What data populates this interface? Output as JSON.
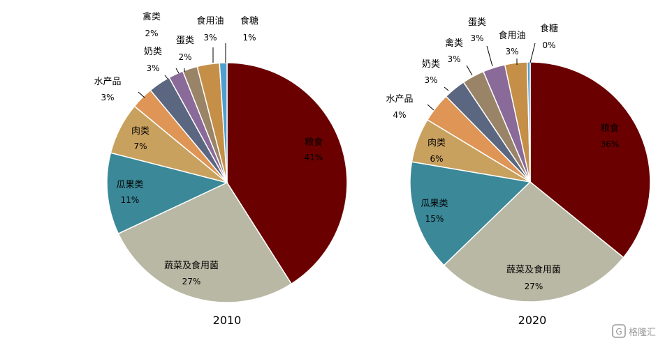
{
  "chart_data": [
    {
      "type": "pie",
      "title": "",
      "caption": "2010",
      "categories": [
        "粮食",
        "蔬菜及食用菌",
        "瓜果类",
        "肉类",
        "水产品",
        "奶类",
        "蛋类",
        "禽类",
        "食用油",
        "食糖"
      ],
      "values": [
        41,
        27,
        11,
        7,
        3,
        3,
        2,
        2,
        3,
        1
      ],
      "labels": [
        "41%",
        "27%",
        "11%",
        "7%",
        "3%",
        "3%",
        "2%",
        "2%",
        "3%",
        "1%"
      ]
    },
    {
      "type": "pie",
      "title": "",
      "caption": "2020",
      "categories": [
        "粮食",
        "蔬菜及食用菌",
        "瓜果类",
        "肉类",
        "水产品",
        "奶类",
        "禽类",
        "蛋类",
        "食用油",
        "食糖"
      ],
      "values": [
        36,
        27,
        15,
        6,
        4,
        3,
        3,
        3,
        3,
        0
      ],
      "labels": [
        "36%",
        "27%",
        "15%",
        "6%",
        "4%",
        "3%",
        "3%",
        "3%",
        "3%",
        "0%"
      ]
    }
  ],
  "colors": {
    "粮食": "#6b0000",
    "蔬菜及食用菌": "#b9b8a4",
    "瓜果类": "#3a8898",
    "肉类": "#c9a15e",
    "水产品": "#de9555",
    "奶类": "#5b6680",
    "禽类": "#9a8468",
    "蛋类": "#8a6a98",
    "食用油": "#c58f48",
    "食糖": "#4f9fd0"
  },
  "watermark": "格隆汇",
  "watermark_icon": "glh-logo-icon"
}
